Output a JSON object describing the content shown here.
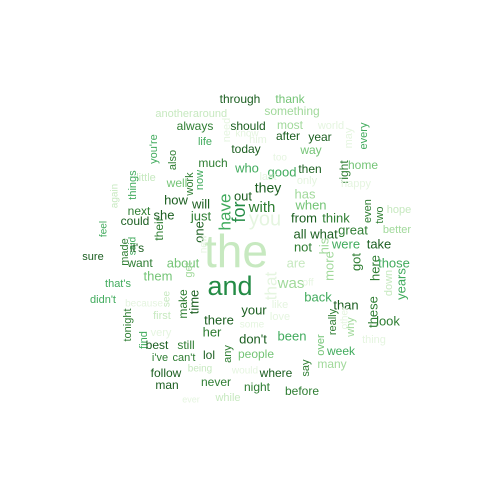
{
  "words": [
    {
      "text": "the",
      "color": "#c7e9c0",
      "rotated": false
    },
    {
      "text": "and",
      "color": "#238b45",
      "rotated": false
    },
    {
      "text": "you",
      "color": "#e5f5e0",
      "rotated": false
    },
    {
      "text": "that",
      "color": "#e5f5e0",
      "rotated": true
    },
    {
      "text": "for",
      "color": "#238b45",
      "rotated": true
    },
    {
      "text": "with",
      "color": "#2e7d32",
      "rotated": false
    },
    {
      "text": "have",
      "color": "#41ab5d",
      "rotated": true
    },
    {
      "text": "was",
      "color": "#a1d99b",
      "rotated": false
    },
    {
      "text": "they",
      "color": "#1b5e20",
      "rotated": false
    },
    {
      "text": "out",
      "color": "#1b5e20",
      "rotated": false
    },
    {
      "text": "your",
      "color": "#1b5e20",
      "rotated": false
    },
    {
      "text": "there",
      "color": "#1b5e20",
      "rotated": false
    },
    {
      "text": "her",
      "color": "#2e7d32",
      "rotated": false
    },
    {
      "text": "just",
      "color": "#2e7d32",
      "rotated": false
    },
    {
      "text": "she",
      "color": "#1b5e20",
      "rotated": false
    },
    {
      "text": "will",
      "color": "#1b5e20",
      "rotated": false
    },
    {
      "text": "how",
      "color": "#1b5e20",
      "rotated": false
    },
    {
      "text": "one",
      "color": "#1b5e20",
      "rotated": true
    },
    {
      "text": "time",
      "color": "#1b5e20",
      "rotated": true
    },
    {
      "text": "about",
      "color": "#74c476",
      "rotated": false
    },
    {
      "text": "them",
      "color": "#74c476",
      "rotated": false
    },
    {
      "text": "all",
      "color": "#1b5e20",
      "rotated": false
    },
    {
      "text": "what",
      "color": "#1b5e20",
      "rotated": false
    },
    {
      "text": "not",
      "color": "#2e7d32",
      "rotated": false
    },
    {
      "text": "from",
      "color": "#1b5e20",
      "rotated": false
    },
    {
      "text": "think",
      "color": "#2e7d32",
      "rotated": false
    },
    {
      "text": "when",
      "color": "#74c476",
      "rotated": false
    },
    {
      "text": "has",
      "color": "#a1d99b",
      "rotated": false
    },
    {
      "text": "good",
      "color": "#41ab5d",
      "rotated": false
    },
    {
      "text": "who",
      "color": "#41ab5d",
      "rotated": false
    },
    {
      "text": "more",
      "color": "#a1d99b",
      "rotated": true
    },
    {
      "text": "his",
      "color": "#a1d99b",
      "rotated": true
    },
    {
      "text": "are",
      "color": "#c7e9c0",
      "rotated": false
    },
    {
      "text": "don't",
      "color": "#1b5e20",
      "rotated": false
    },
    {
      "text": "been",
      "color": "#41ab5d",
      "rotated": false
    },
    {
      "text": "back",
      "color": "#41ab5d",
      "rotated": false
    },
    {
      "text": "than",
      "color": "#1b5e20",
      "rotated": false
    },
    {
      "text": "these",
      "color": "#2e7d32",
      "rotated": true
    },
    {
      "text": "look",
      "color": "#2e7d32",
      "rotated": false
    },
    {
      "text": "take",
      "color": "#1b5e20",
      "rotated": false
    },
    {
      "text": "were",
      "color": "#41ab5d",
      "rotated": false
    },
    {
      "text": "great",
      "color": "#2e7d32",
      "rotated": false
    },
    {
      "text": "got",
      "color": "#2e7d32",
      "rotated": true
    },
    {
      "text": "here",
      "color": "#2e7d32",
      "rotated": true
    },
    {
      "text": "those",
      "color": "#41ab5d",
      "rotated": false
    },
    {
      "text": "years",
      "color": "#41ab5d",
      "rotated": true
    },
    {
      "text": "down",
      "color": "#c7e9c0",
      "rotated": true
    },
    {
      "text": "better",
      "color": "#a1d99b",
      "rotated": false
    },
    {
      "text": "hope",
      "color": "#c7e9c0",
      "rotated": false
    },
    {
      "text": "two",
      "color": "#2e7d32",
      "rotated": true
    },
    {
      "text": "even",
      "color": "#2e7d32",
      "rotated": true
    },
    {
      "text": "home",
      "color": "#74c476",
      "rotated": false
    },
    {
      "text": "right",
      "color": "#2e7d32",
      "rotated": true
    },
    {
      "text": "then",
      "color": "#1b5e20",
      "rotated": false
    },
    {
      "text": "way",
      "color": "#74c476",
      "rotated": false
    },
    {
      "text": "year",
      "color": "#1b5e20",
      "rotated": false
    },
    {
      "text": "most",
      "color": "#a1d99b",
      "rotated": false
    },
    {
      "text": "after",
      "color": "#1b5e20",
      "rotated": false
    },
    {
      "text": "him",
      "color": "#e5f5e0",
      "rotated": false
    },
    {
      "text": "thank",
      "color": "#74c476",
      "rotated": false
    },
    {
      "text": "something",
      "color": "#a1d99b",
      "rotated": false
    },
    {
      "text": "world",
      "color": "#e5f5e0",
      "rotated": false
    },
    {
      "text": "may",
      "color": "#e5f5e0",
      "rotated": true
    },
    {
      "text": "every",
      "color": "#41ab5d",
      "rotated": true
    },
    {
      "text": "through",
      "color": "#1b5e20",
      "rotated": false
    },
    {
      "text": "around",
      "color": "#c7e9c0",
      "rotated": false
    },
    {
      "text": "another",
      "color": "#c7e9c0",
      "rotated": false
    },
    {
      "text": "should",
      "color": "#1b5e20",
      "rotated": false
    },
    {
      "text": "always",
      "color": "#2e7d32",
      "rotated": false
    },
    {
      "text": "need",
      "color": "#e5f5e0",
      "rotated": true
    },
    {
      "text": "life",
      "color": "#41ab5d",
      "rotated": false
    },
    {
      "text": "today",
      "color": "#1b5e20",
      "rotated": false
    },
    {
      "text": "much",
      "color": "#2e7d32",
      "rotated": false
    },
    {
      "text": "work",
      "color": "#2e7d32",
      "rotated": true
    },
    {
      "text": "also",
      "color": "#2e7d32",
      "rotated": true
    },
    {
      "text": "you're",
      "color": "#41ab5d",
      "rotated": true
    },
    {
      "text": "little",
      "color": "#c7e9c0",
      "rotated": false
    },
    {
      "text": "things",
      "color": "#41ab5d",
      "rotated": true
    },
    {
      "text": "well",
      "color": "#74c476",
      "rotated": false
    },
    {
      "text": "now",
      "color": "#41ab5d",
      "rotated": true
    },
    {
      "text": "again",
      "color": "#c7e9c0",
      "rotated": true
    },
    {
      "text": "next",
      "color": "#2e7d32",
      "rotated": false
    },
    {
      "text": "could",
      "color": "#1b5e20",
      "rotated": false
    },
    {
      "text": "their",
      "color": "#2e7d32",
      "rotated": true
    },
    {
      "text": "feel",
      "color": "#41ab5d",
      "rotated": true
    },
    {
      "text": "said",
      "color": "#41ab5d",
      "rotated": true
    },
    {
      "text": "made",
      "color": "#2e7d32",
      "rotated": true
    },
    {
      "text": "it's",
      "color": "#1b5e20",
      "rotated": false
    },
    {
      "text": "sure",
      "color": "#1b5e20",
      "rotated": false
    },
    {
      "text": "want",
      "color": "#2e7d32",
      "rotated": false
    },
    {
      "text": "get",
      "color": "#a1d99b",
      "rotated": true
    },
    {
      "text": "new",
      "color": "#e5f5e0",
      "rotated": true
    },
    {
      "text": "that's",
      "color": "#41ab5d",
      "rotated": false
    },
    {
      "text": "didn't",
      "color": "#41ab5d",
      "rotated": false
    },
    {
      "text": "see",
      "color": "#c7e9c0",
      "rotated": true
    },
    {
      "text": "make",
      "color": "#2e7d32",
      "rotated": true
    },
    {
      "text": "first",
      "color": "#c7e9c0",
      "rotated": false
    },
    {
      "text": "tonight",
      "color": "#2e7d32",
      "rotated": true
    },
    {
      "text": "find",
      "color": "#41ab5d",
      "rotated": true
    },
    {
      "text": "best",
      "color": "#1b5e20",
      "rotated": false
    },
    {
      "text": "still",
      "color": "#2e7d32",
      "rotated": false
    },
    {
      "text": "i've",
      "color": "#2e7d32",
      "rotated": false
    },
    {
      "text": "can't",
      "color": "#2e7d32",
      "rotated": false
    },
    {
      "text": "lol",
      "color": "#1b5e20",
      "rotated": false
    },
    {
      "text": "any",
      "color": "#2e7d32",
      "rotated": true
    },
    {
      "text": "people",
      "color": "#74c476",
      "rotated": false
    },
    {
      "text": "follow",
      "color": "#1b5e20",
      "rotated": false
    },
    {
      "text": "man",
      "color": "#1b5e20",
      "rotated": false
    },
    {
      "text": "being",
      "color": "#c7e9c0",
      "rotated": false
    },
    {
      "text": "never",
      "color": "#2e7d32",
      "rotated": false
    },
    {
      "text": "night",
      "color": "#2e7d32",
      "rotated": false
    },
    {
      "text": "where",
      "color": "#1b5e20",
      "rotated": false
    },
    {
      "text": "before",
      "color": "#2e7d32",
      "rotated": false
    },
    {
      "text": "say",
      "color": "#2e7d32",
      "rotated": true
    },
    {
      "text": "over",
      "color": "#74c476",
      "rotated": true
    },
    {
      "text": "really",
      "color": "#2e7d32",
      "rotated": true
    },
    {
      "text": "week",
      "color": "#41ab5d",
      "rotated": false
    },
    {
      "text": "many",
      "color": "#a1d99b",
      "rotated": false
    },
    {
      "text": "while",
      "color": "#c7e9c0",
      "rotated": false
    },
    {
      "text": "ever",
      "color": "#e5f5e0",
      "rotated": false
    },
    {
      "text": "love",
      "color": "#e5f5e0",
      "rotated": false
    },
    {
      "text": "some",
      "color": "#e5f5e0",
      "rotated": false
    },
    {
      "text": "like",
      "color": "#e5f5e0",
      "rotated": false
    },
    {
      "text": "why",
      "color": "#a1d99b",
      "rotated": true
    },
    {
      "text": "other",
      "color": "#e5f5e0",
      "rotated": true
    },
    {
      "text": "thing",
      "color": "#e5f5e0",
      "rotated": false
    },
    {
      "text": "because",
      "color": "#e5f5e0",
      "rotated": false
    },
    {
      "text": "very",
      "color": "#e5f5e0",
      "rotated": false
    },
    {
      "text": "only",
      "color": "#e5f5e0",
      "rotated": false
    },
    {
      "text": "happy",
      "color": "#e5f5e0",
      "rotated": false
    },
    {
      "text": "know",
      "color": "#e5f5e0",
      "rotated": false
    },
    {
      "text": "last",
      "color": "#e5f5e0",
      "rotated": false
    },
    {
      "text": "too",
      "color": "#e5f5e0",
      "rotated": false
    },
    {
      "text": "would",
      "color": "#e5f5e0",
      "rotated": false
    },
    {
      "text": "off",
      "color": "#e5f5e0",
      "rotated": false
    },
    {
      "text": "back",
      "color": "#e5f5e0",
      "rotated": false
    }
  ]
}
